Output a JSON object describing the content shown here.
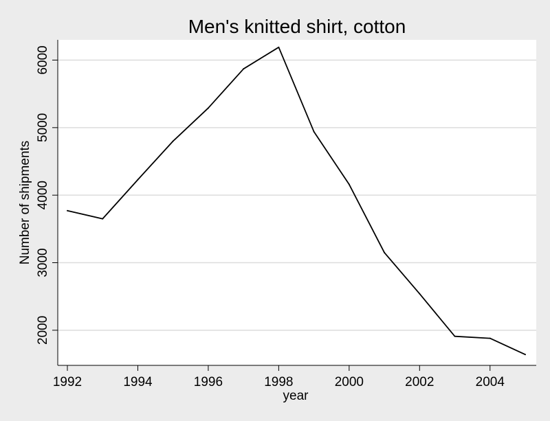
{
  "chart_data": {
    "type": "line",
    "title": "Men's knitted shirt, cotton",
    "xlabel": "year",
    "ylabel": "Number of shipments",
    "xlim": [
      1992,
      2005
    ],
    "ylim": [
      1500,
      6300
    ],
    "xticks": [
      1992,
      1994,
      1996,
      1998,
      2000,
      2002,
      2004
    ],
    "xtick_labels": [
      "1992",
      "1994",
      "1996",
      "1998",
      "2000",
      "2002",
      "2004"
    ],
    "yticks": [
      2000,
      3000,
      4000,
      5000,
      6000
    ],
    "ytick_labels": [
      "2000",
      "3000",
      "4000",
      "5000",
      "6000"
    ],
    "grid": true,
    "series": [
      {
        "x": [
          1992,
          1993,
          1994,
          1995,
          1996,
          1997,
          1998,
          1999,
          2000,
          2001,
          2002,
          2003,
          2004,
          2005
        ],
        "values": [
          3770,
          3650,
          4230,
          4800,
          5290,
          5870,
          6190,
          4940,
          4160,
          3150,
          2540,
          1910,
          1880,
          1640
        ]
      }
    ],
    "colors": {
      "background": "#ececec",
      "plot_background": "#ffffff",
      "line": "#000000",
      "grid": "#dcdcdc"
    }
  }
}
